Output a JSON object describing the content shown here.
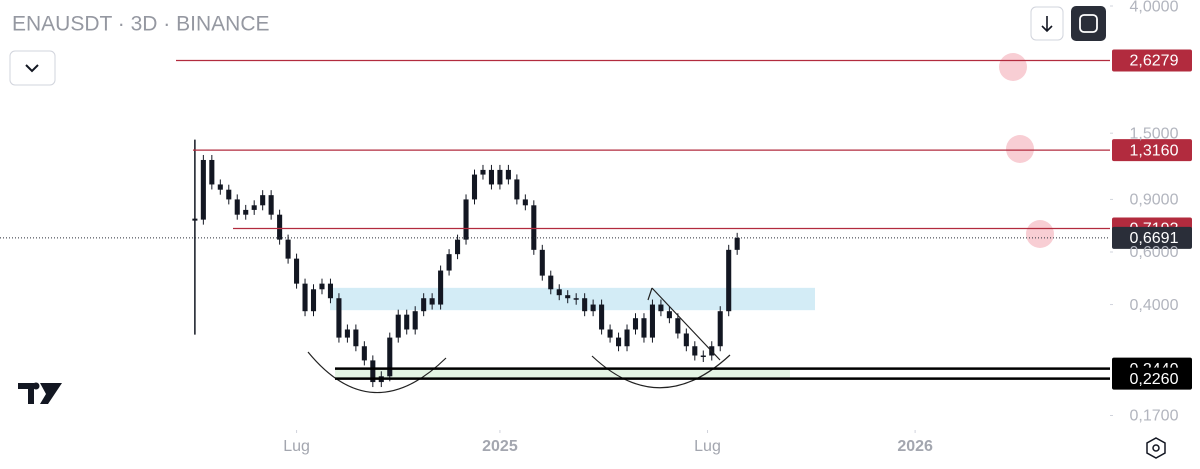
{
  "chart_data": {
    "type": "candlestick",
    "title": "ENAUSDT · 3D · BINANCE",
    "log_scale": true,
    "ylim": [
      0.152,
      4.19
    ],
    "yticks": [
      {
        "value": 4,
        "label": "4,0000"
      },
      {
        "value": 1.5,
        "label": "1,5000"
      },
      {
        "value": 0.9,
        "label": "0,9000"
      },
      {
        "value": 0.6,
        "label": "0,6000"
      },
      {
        "value": 0.4,
        "label": "0,4000"
      },
      {
        "value": 0.17,
        "label": "0,1700"
      }
    ],
    "xlim": [
      -23,
      108
    ],
    "xticks": [
      {
        "value": 12,
        "label": "Lug"
      },
      {
        "value": 36,
        "label": "2025"
      },
      {
        "value": 60.5,
        "label": "Lug"
      },
      {
        "value": 85,
        "label": "2026"
      }
    ],
    "color": "#131722",
    "values": [
      0.77,
      1.22,
      1.01,
      0.97,
      0.9,
      0.8,
      0.83,
      0.86,
      0.93,
      0.8,
      0.66,
      0.57,
      0.47,
      0.38,
      0.45,
      0.47,
      0.42,
      0.31,
      0.33,
      0.29,
      0.26,
      0.22,
      0.23,
      0.31,
      0.37,
      0.33,
      0.38,
      0.42,
      0.4,
      0.52,
      0.59,
      0.66,
      0.9,
      1.09,
      1.13,
      1.01,
      1.13,
      1.05,
      0.9,
      0.86,
      0.61,
      0.5,
      0.45,
      0.43,
      0.42,
      0.42,
      0.38,
      0.4,
      0.33,
      0.31,
      0.29,
      0.33,
      0.36,
      0.31,
      0.4,
      0.38,
      0.36,
      0.32,
      0.29,
      0.27,
      0.27,
      0.29,
      0.38,
      0.61,
      0.6691
    ],
    "levels": [
      {
        "value": 2.6279,
        "label": "2,6279",
        "color": "#b22b3e"
      },
      {
        "value": 1.316,
        "label": "1,3160",
        "color": "#b22b3e"
      },
      {
        "value": 0.7193,
        "label": "0,7193",
        "color": "#b22b3e"
      },
      {
        "value": 0.6691,
        "label": "0,6691",
        "color": "#2a2e39"
      },
      {
        "value": 0.244,
        "label": "0,2440",
        "color": "#000000"
      },
      {
        "value": 0.226,
        "label": "0,2260",
        "color": "#000000"
      }
    ],
    "zones": [
      {
        "low": 0.383,
        "high": 0.455,
        "color": "#d3ecf6"
      },
      {
        "low": 0.226,
        "high": 0.244,
        "color": "#e4f4e4"
      }
    ]
  }
}
